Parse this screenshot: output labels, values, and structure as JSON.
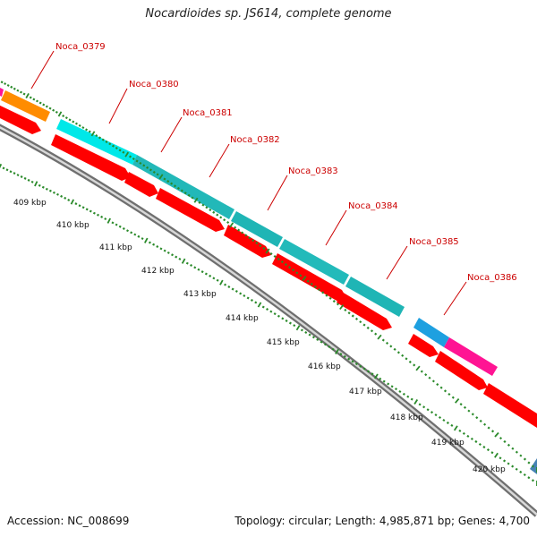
{
  "title": "Nocardioides sp. JS614, complete genome",
  "footer": {
    "accession": "Accession: NC_008699",
    "summary": "Topology: circular; Length: 4,985,871 bp; Genes: 4,700"
  },
  "gene_labels": [
    "Noca_0379",
    "Noca_0380",
    "Noca_0381",
    "Noca_0382",
    "Noca_0383",
    "Noca_0384",
    "Noca_0385",
    "Noca_0386"
  ],
  "kbp_ticks": [
    "409 kbp",
    "410 kbp",
    "411 kbp",
    "412 kbp",
    "413 kbp",
    "414 kbp",
    "415 kbp",
    "416 kbp",
    "417 kbp",
    "418 kbp",
    "419 kbp",
    "420 kbp"
  ],
  "colors": {
    "label": "#cc0000",
    "cds": "#ff0000",
    "backbone": "#888888",
    "tick": "#2a8a2a",
    "cog_orange": "#ff8c00",
    "cog_cyan": "#00e0e0",
    "cog_teal": "#20b8b8",
    "cog_blue": "#1ea0e0",
    "cog_magenta": "#ff1493",
    "cog_steel": "#4682b4"
  }
}
